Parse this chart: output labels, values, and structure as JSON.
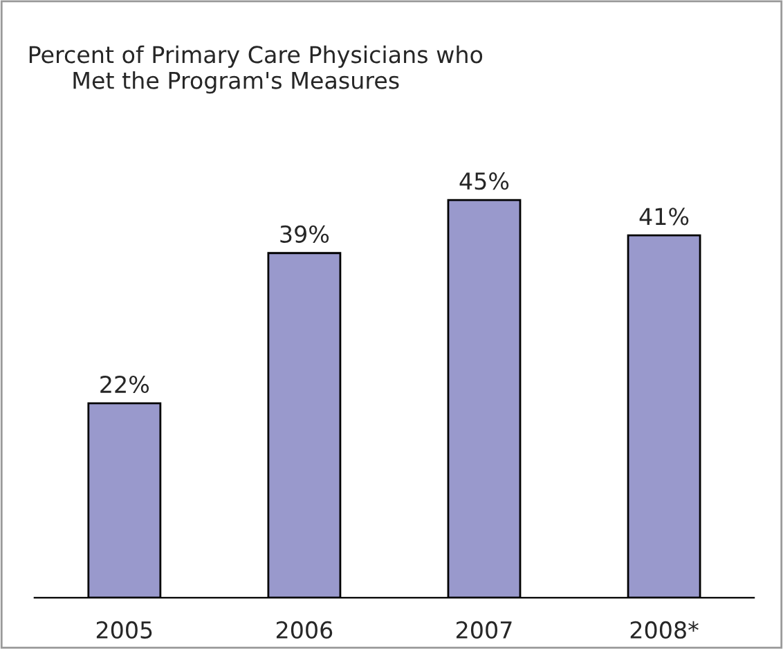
{
  "chart_data": {
    "type": "bar",
    "title": "Percent of Primary Care Physicians who\n      Met the Program's Measures",
    "categories": [
      "2005",
      "2006",
      "2007",
      "2008*"
    ],
    "values": [
      22,
      39,
      45,
      41
    ],
    "value_labels": [
      "22%",
      "39%",
      "45%",
      "41%"
    ],
    "color": "#9999cc",
    "grid": false,
    "legend": false
  }
}
